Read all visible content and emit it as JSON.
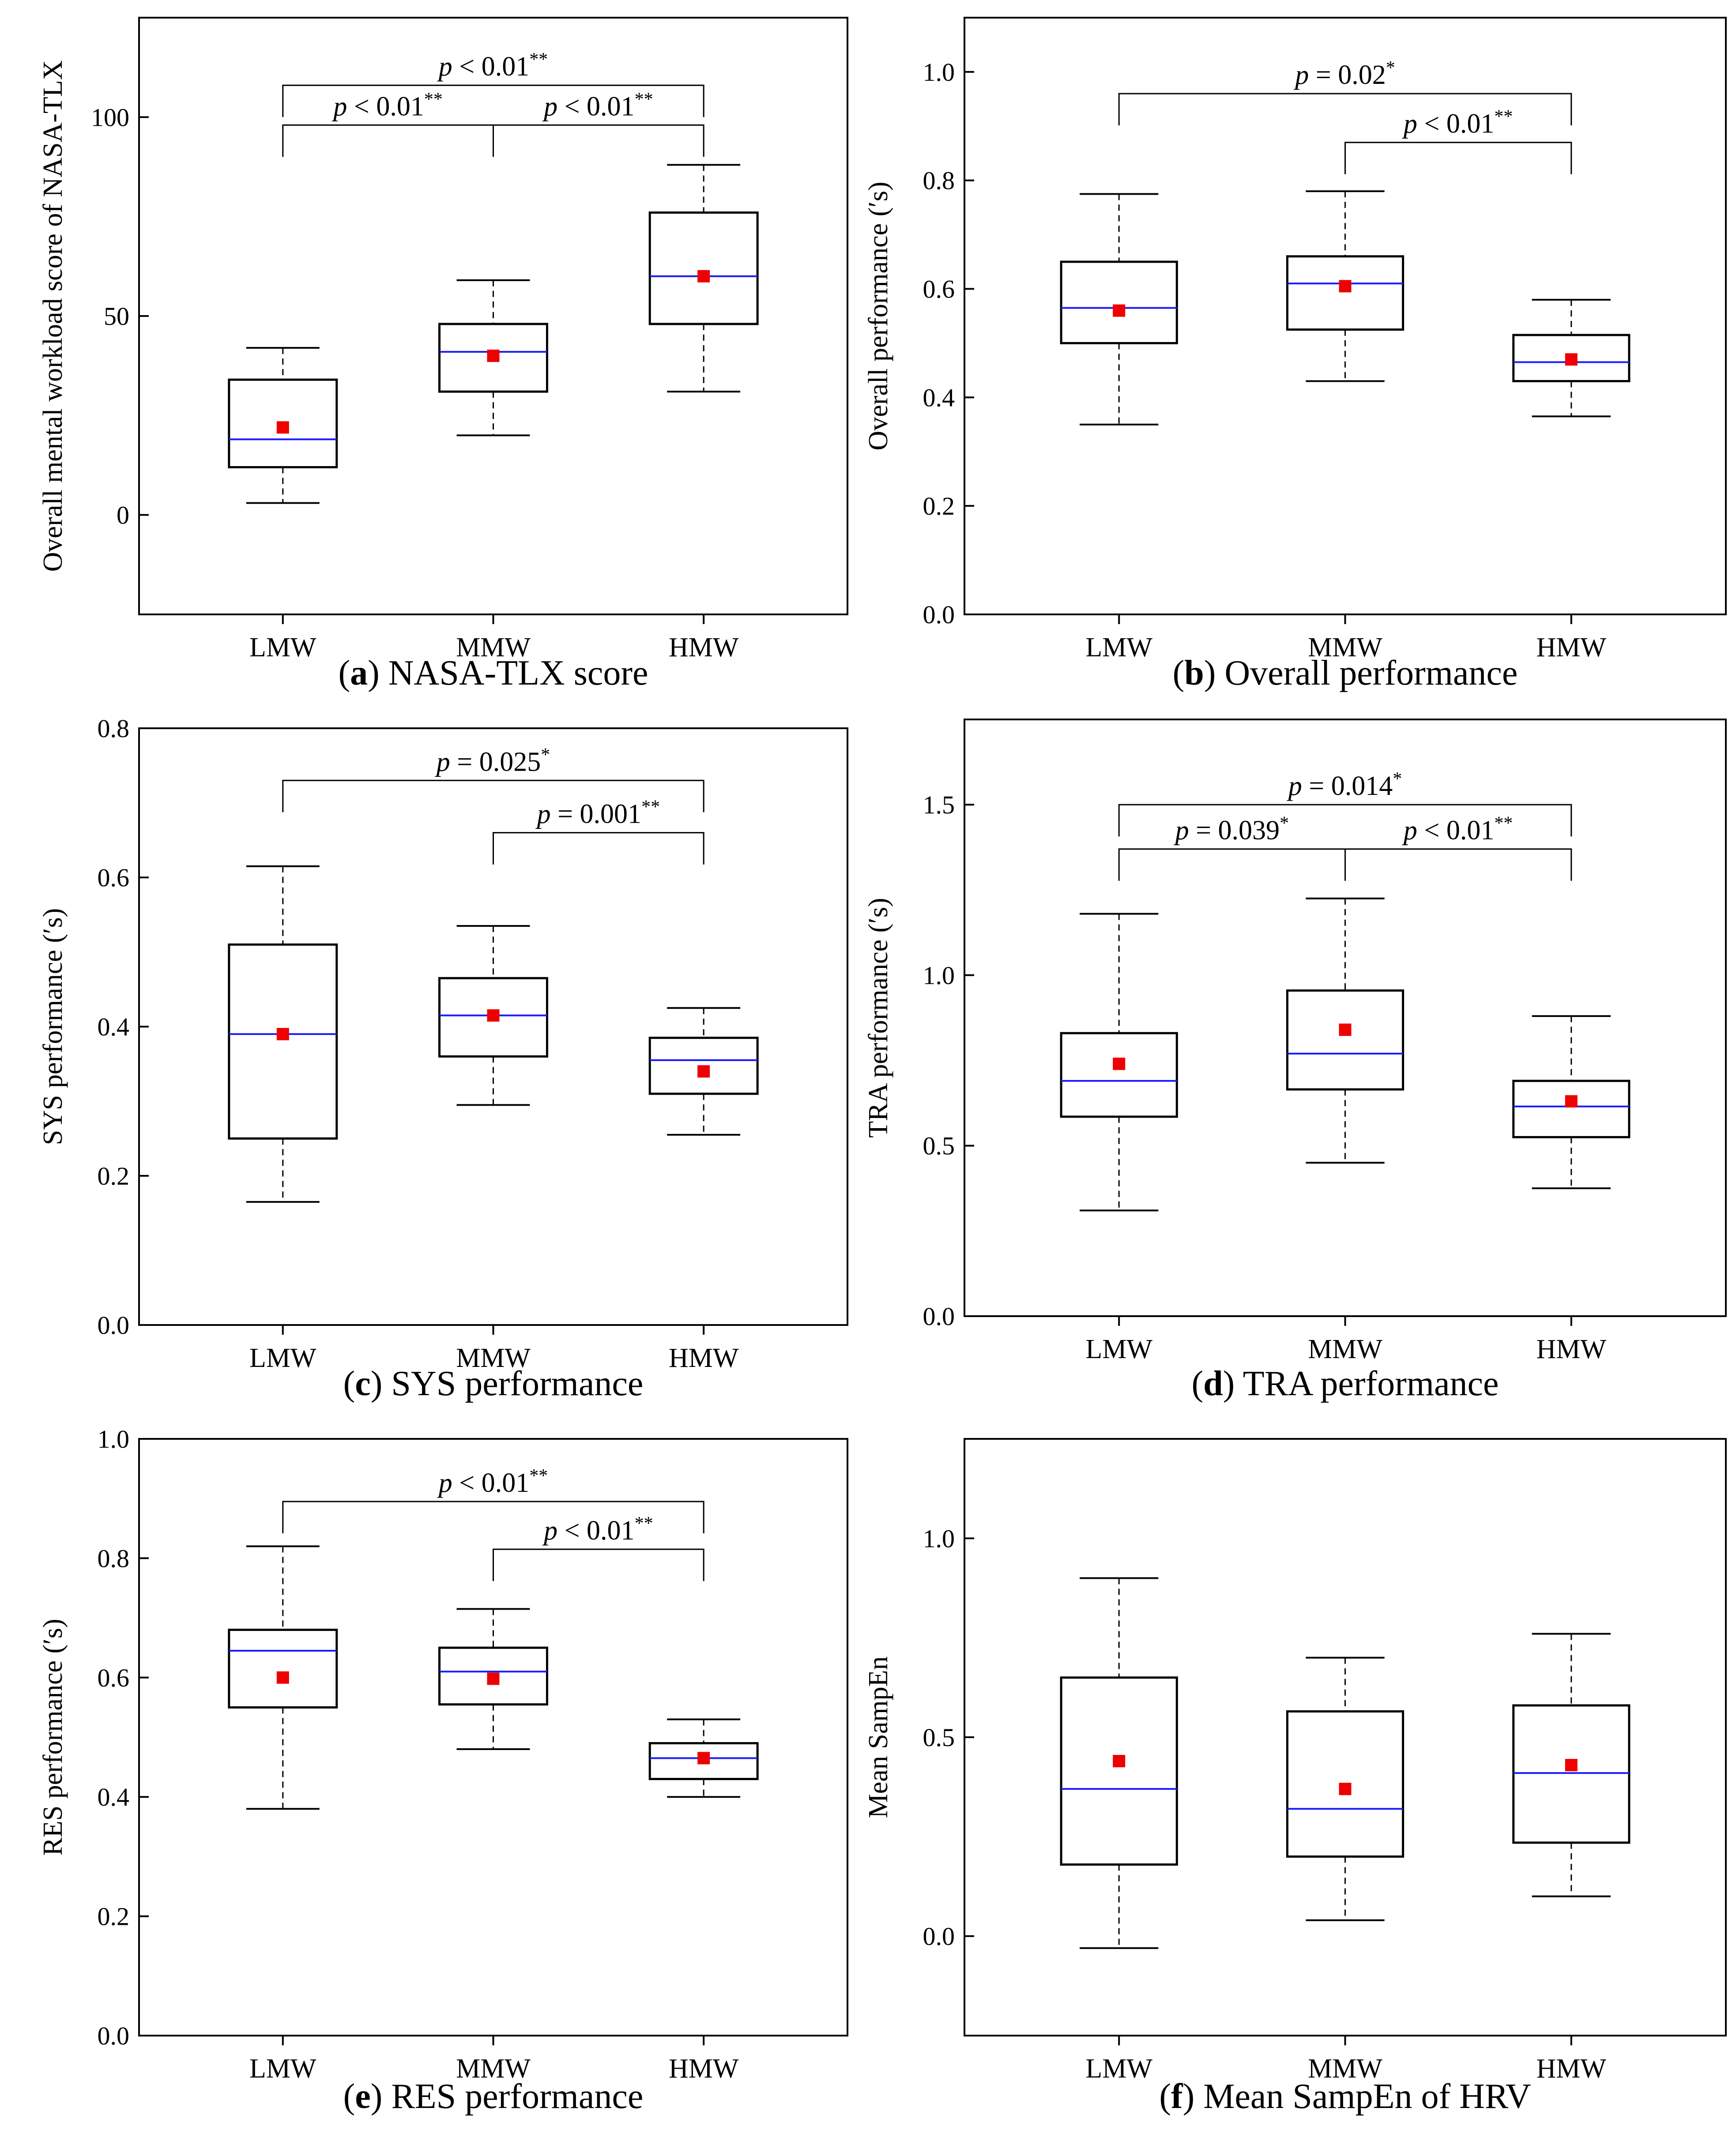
{
  "figure": {
    "colors": {
      "median": "#1a1aff",
      "mean": "#ee0000",
      "axis": "#000000"
    }
  },
  "chart_data": [
    {
      "id": "a",
      "type": "box",
      "caption_letter": "a",
      "caption_text": " NASA-TLX score",
      "ylabel": "Overall mental workload score of  NASA-TLX",
      "categories": [
        "LMW",
        "MMW",
        "HMW"
      ],
      "ylim": [
        -25,
        125
      ],
      "yticks": [
        0,
        50,
        100
      ],
      "ytick_labels": [
        "0",
        "50",
        "100"
      ],
      "boxes": [
        {
          "name": "LMW",
          "whisker_low": 3,
          "q1": 12,
          "median": 19,
          "q3": 34,
          "whisker_high": 42,
          "mean": 22
        },
        {
          "name": "MMW",
          "whisker_low": 20,
          "q1": 31,
          "median": 41,
          "q3": 48,
          "whisker_high": 59,
          "mean": 40
        },
        {
          "name": "HMW",
          "whisker_low": 31,
          "q1": 48,
          "median": 60,
          "q3": 76,
          "whisker_high": 88,
          "mean": 60
        }
      ],
      "brackets": [
        {
          "from": 0,
          "to": 2,
          "level": 108,
          "prefix": "p",
          "text": " < 0.01",
          "stars": "**",
          "kind": "span"
        },
        {
          "from": 0,
          "to": 2,
          "mid": 1,
          "level": 98,
          "kind": "split",
          "left": {
            "prefix": "p",
            "text": " < 0.01",
            "stars": "**"
          },
          "right": {
            "prefix": "p",
            "text": " < 0.01",
            "stars": "**"
          }
        }
      ]
    },
    {
      "id": "b",
      "type": "box",
      "caption_letter": "b",
      "caption_text": " Overall performance",
      "ylabel": "Overall performance (′s)",
      "categories": [
        "LMW",
        "MMW",
        "HMW"
      ],
      "ylim": [
        0,
        1.1
      ],
      "yticks": [
        0,
        0.2,
        0.4,
        0.6,
        0.8,
        1.0
      ],
      "ytick_labels": [
        "0.0",
        "0.2",
        "0.4",
        "0.6",
        "0.8",
        "1.0"
      ],
      "boxes": [
        {
          "name": "LMW",
          "whisker_low": 0.35,
          "q1": 0.5,
          "median": 0.565,
          "q3": 0.65,
          "whisker_high": 0.775,
          "mean": 0.56
        },
        {
          "name": "MMW",
          "whisker_low": 0.43,
          "q1": 0.525,
          "median": 0.61,
          "q3": 0.66,
          "whisker_high": 0.78,
          "mean": 0.605
        },
        {
          "name": "HMW",
          "whisker_low": 0.365,
          "q1": 0.43,
          "median": 0.465,
          "q3": 0.515,
          "whisker_high": 0.58,
          "mean": 0.47
        }
      ],
      "brackets": [
        {
          "from": 0,
          "to": 2,
          "level": 0.96,
          "prefix": "p",
          "text": " = 0.02",
          "stars": "*",
          "kind": "span"
        },
        {
          "from": 1,
          "to": 2,
          "level": 0.87,
          "prefix": "p",
          "text": " < 0.01",
          "stars": "**",
          "kind": "span"
        }
      ]
    },
    {
      "id": "c",
      "type": "box",
      "caption_letter": "c",
      "caption_text": " SYS performance",
      "ylabel": "SYS performance (′s)",
      "categories": [
        "LMW",
        "MMW",
        "HMW"
      ],
      "ylim": [
        0,
        0.8
      ],
      "yticks": [
        0,
        0.2,
        0.4,
        0.6,
        0.8
      ],
      "ytick_labels": [
        "0.0",
        "0.2",
        "0.4",
        "0.6",
        "0.8"
      ],
      "boxes": [
        {
          "name": "LMW",
          "whisker_low": 0.165,
          "q1": 0.25,
          "median": 0.39,
          "q3": 0.51,
          "whisker_high": 0.615,
          "mean": 0.39
        },
        {
          "name": "MMW",
          "whisker_low": 0.295,
          "q1": 0.36,
          "median": 0.415,
          "q3": 0.465,
          "whisker_high": 0.535,
          "mean": 0.415
        },
        {
          "name": "HMW",
          "whisker_low": 0.255,
          "q1": 0.31,
          "median": 0.355,
          "q3": 0.385,
          "whisker_high": 0.425,
          "mean": 0.34
        }
      ],
      "brackets": [
        {
          "from": 0,
          "to": 2,
          "level": 0.73,
          "prefix": "p",
          "text": " = 0.025",
          "stars": "*",
          "kind": "span"
        },
        {
          "from": 1,
          "to": 2,
          "level": 0.66,
          "prefix": "p",
          "text": " = 0.001",
          "stars": "**",
          "kind": "span"
        }
      ]
    },
    {
      "id": "d",
      "type": "box",
      "caption_letter": "d",
      "caption_text": " TRA performance",
      "ylabel": "TRA performance (′s)",
      "categories": [
        "LMW",
        "MMW",
        "HMW"
      ],
      "ylim": [
        0,
        1.75
      ],
      "yticks": [
        0,
        0.5,
        1.0,
        1.5
      ],
      "ytick_labels": [
        "0.0",
        "0.5",
        "1.0",
        "1.5"
      ],
      "boxes": [
        {
          "name": "LMW",
          "whisker_low": 0.31,
          "q1": 0.585,
          "median": 0.69,
          "q3": 0.83,
          "whisker_high": 1.18,
          "mean": 0.74
        },
        {
          "name": "MMW",
          "whisker_low": 0.45,
          "q1": 0.665,
          "median": 0.77,
          "q3": 0.955,
          "whisker_high": 1.225,
          "mean": 0.84
        },
        {
          "name": "HMW",
          "whisker_low": 0.375,
          "q1": 0.525,
          "median": 0.615,
          "q3": 0.69,
          "whisker_high": 0.88,
          "mean": 0.63
        }
      ],
      "brackets": [
        {
          "from": 0,
          "to": 2,
          "level": 1.5,
          "prefix": "p",
          "text": " = 0.014",
          "stars": "*",
          "kind": "span"
        },
        {
          "from": 0,
          "to": 2,
          "mid": 1,
          "level": 1.37,
          "kind": "split",
          "left": {
            "prefix": "p",
            "text": " = 0.039",
            "stars": "*"
          },
          "right": {
            "prefix": "p",
            "text": " < 0.01",
            "stars": "**"
          }
        }
      ]
    },
    {
      "id": "e",
      "type": "box",
      "caption_letter": "e",
      "caption_text": " RES performance",
      "ylabel": "RES performance (′s)",
      "categories": [
        "LMW",
        "MMW",
        "HMW"
      ],
      "ylim": [
        0,
        1.0
      ],
      "yticks": [
        0,
        0.2,
        0.4,
        0.6,
        0.8,
        1.0
      ],
      "ytick_labels": [
        "0.0",
        "0.2",
        "0.4",
        "0.6",
        "0.8",
        "1.0"
      ],
      "boxes": [
        {
          "name": "LMW",
          "whisker_low": 0.38,
          "q1": 0.55,
          "median": 0.645,
          "q3": 0.68,
          "whisker_high": 0.82,
          "mean": 0.6
        },
        {
          "name": "MMW",
          "whisker_low": 0.48,
          "q1": 0.555,
          "median": 0.61,
          "q3": 0.65,
          "whisker_high": 0.715,
          "mean": 0.598
        },
        {
          "name": "HMW",
          "whisker_low": 0.4,
          "q1": 0.43,
          "median": 0.465,
          "q3": 0.49,
          "whisker_high": 0.53,
          "mean": 0.465
        }
      ],
      "brackets": [
        {
          "from": 0,
          "to": 2,
          "level": 0.895,
          "prefix": "p",
          "text": " < 0.01",
          "stars": "**",
          "kind": "span"
        },
        {
          "from": 1,
          "to": 2,
          "level": 0.815,
          "prefix": "p",
          "text": " < 0.01",
          "stars": "**",
          "kind": "span"
        }
      ]
    },
    {
      "id": "f",
      "type": "box",
      "caption_letter": "f",
      "caption_text": " Mean SampEn of HRV",
      "ylabel": "Mean SampEn",
      "categories": [
        "LMW",
        "MMW",
        "HMW"
      ],
      "ylim": [
        -0.25,
        1.25
      ],
      "yticks": [
        0,
        0.5,
        1.0
      ],
      "ytick_labels": [
        "0.0",
        "0.5",
        "1.0"
      ],
      "boxes": [
        {
          "name": "LMW",
          "whisker_low": -0.03,
          "q1": 0.18,
          "median": 0.37,
          "q3": 0.65,
          "whisker_high": 0.9,
          "mean": 0.44
        },
        {
          "name": "MMW",
          "whisker_low": 0.04,
          "q1": 0.2,
          "median": 0.32,
          "q3": 0.565,
          "whisker_high": 0.7,
          "mean": 0.37
        },
        {
          "name": "HMW",
          "whisker_low": 0.1,
          "q1": 0.235,
          "median": 0.41,
          "q3": 0.58,
          "whisker_high": 0.76,
          "mean": 0.43
        }
      ],
      "brackets": []
    }
  ]
}
